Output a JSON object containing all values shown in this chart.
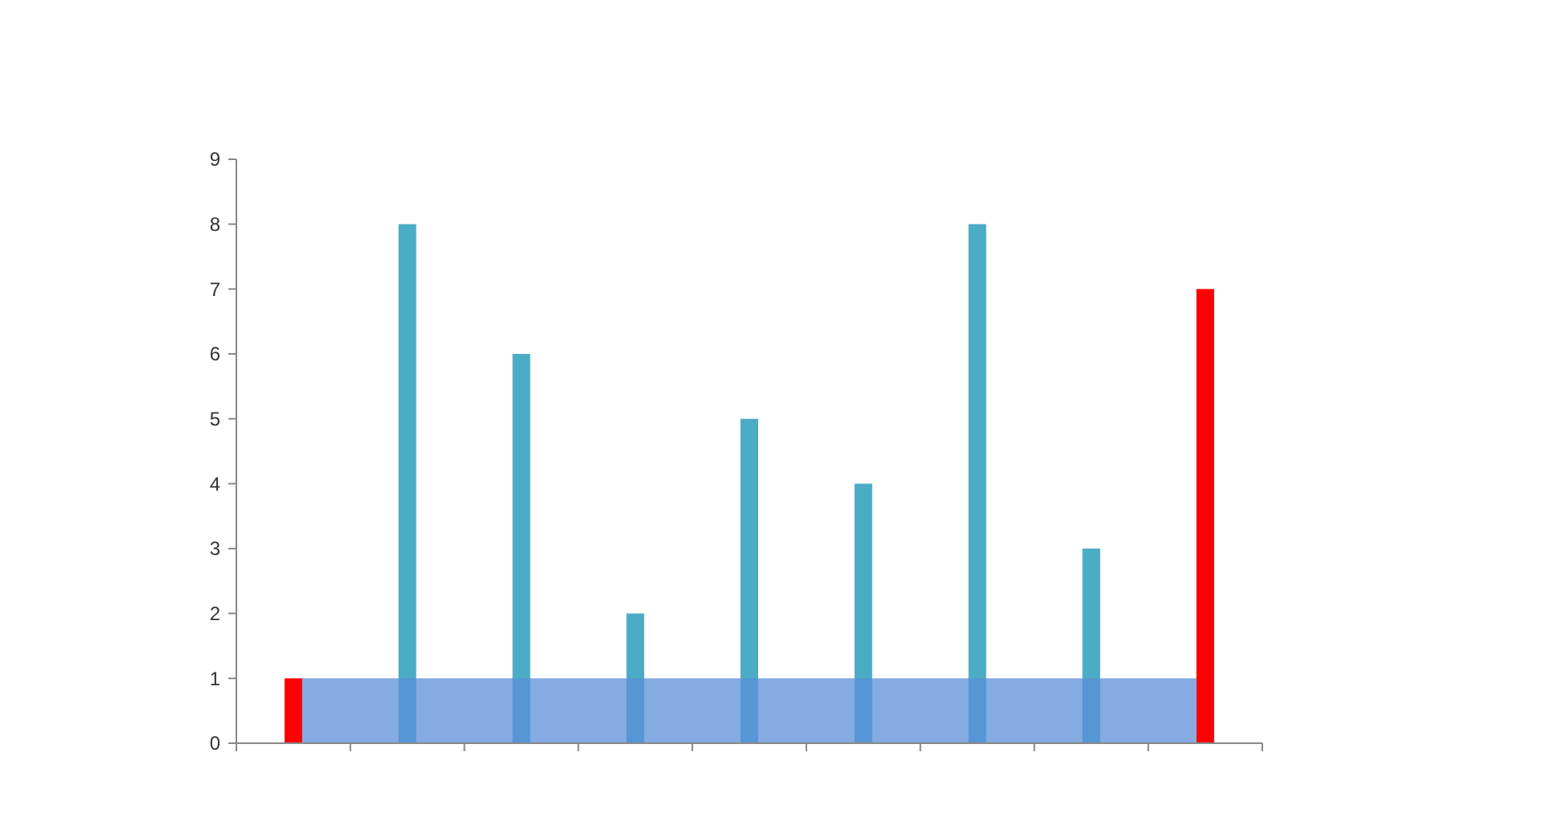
{
  "chart_data": {
    "type": "bar",
    "categories": [
      null,
      null,
      null,
      null,
      null,
      null,
      null,
      null,
      null
    ],
    "values": [
      1,
      8,
      6,
      2,
      5,
      4,
      8,
      3,
      7
    ],
    "colors": [
      "#ff0000",
      "#4bacc6",
      "#4bacc6",
      "#4bacc6",
      "#4bacc6",
      "#4bacc6",
      "#4bacc6",
      "#4bacc6",
      "#ff0000"
    ],
    "ylim": [
      0,
      9
    ],
    "yticks": [
      0,
      1,
      2,
      3,
      4,
      5,
      6,
      7,
      8,
      9
    ],
    "grid": false,
    "bands": [
      {
        "axis": "y",
        "from": 0,
        "to": 1,
        "color": "#5b8fd8"
      }
    ]
  }
}
